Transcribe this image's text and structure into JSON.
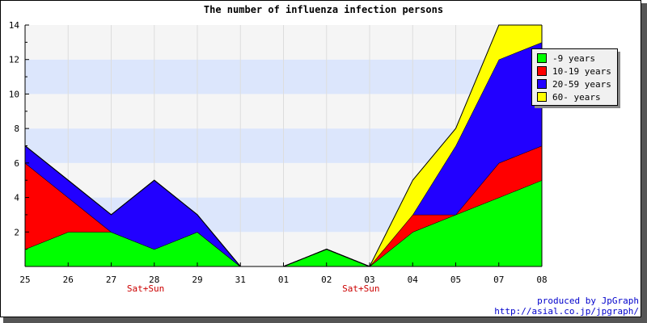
{
  "chart_data": {
    "type": "area",
    "stacked": true,
    "title": "The number of influenza infection persons",
    "categories": [
      "25",
      "26",
      "27",
      "28",
      "29",
      "31",
      "01",
      "02",
      "03",
      "04",
      "05",
      "07",
      "08"
    ],
    "weekend_markers": [
      {
        "category_index": 3,
        "label": "Sat+Sun"
      },
      {
        "category_index": 8,
        "label": "Sat+Sun"
      }
    ],
    "series": [
      {
        "name": "-9 years",
        "color": "#00ff00",
        "values": [
          1,
          2,
          2,
          1,
          2,
          0,
          0,
          1,
          0,
          2,
          3,
          4,
          5
        ]
      },
      {
        "name": "10-19 years",
        "color": "#ff0000",
        "values": [
          5,
          2,
          0,
          0,
          0,
          0,
          0,
          0,
          0,
          1,
          0,
          2,
          2
        ]
      },
      {
        "name": "20-59 years",
        "color": "#2200ff",
        "values": [
          1,
          1,
          1,
          4,
          1,
          0,
          0,
          0,
          0,
          0,
          4,
          6,
          6
        ]
      },
      {
        "name": "60- years",
        "color": "#ffff00",
        "values": [
          0,
          0,
          0,
          0,
          0,
          0,
          0,
          0,
          0,
          2,
          1,
          2,
          1
        ]
      }
    ],
    "ylim": [
      0,
      14
    ],
    "yticks": [
      2,
      4,
      6,
      8,
      10,
      12,
      14
    ],
    "legend_position": "top-right",
    "band_colors": [
      "#dce6fc",
      "#f5f5f5"
    ],
    "credit": {
      "line1": "produced by JpGraph",
      "line2": "http://asial.co.jp/jpgraph/",
      "color": "#0000cc"
    },
    "weekend_label_color": "#cc0000"
  }
}
